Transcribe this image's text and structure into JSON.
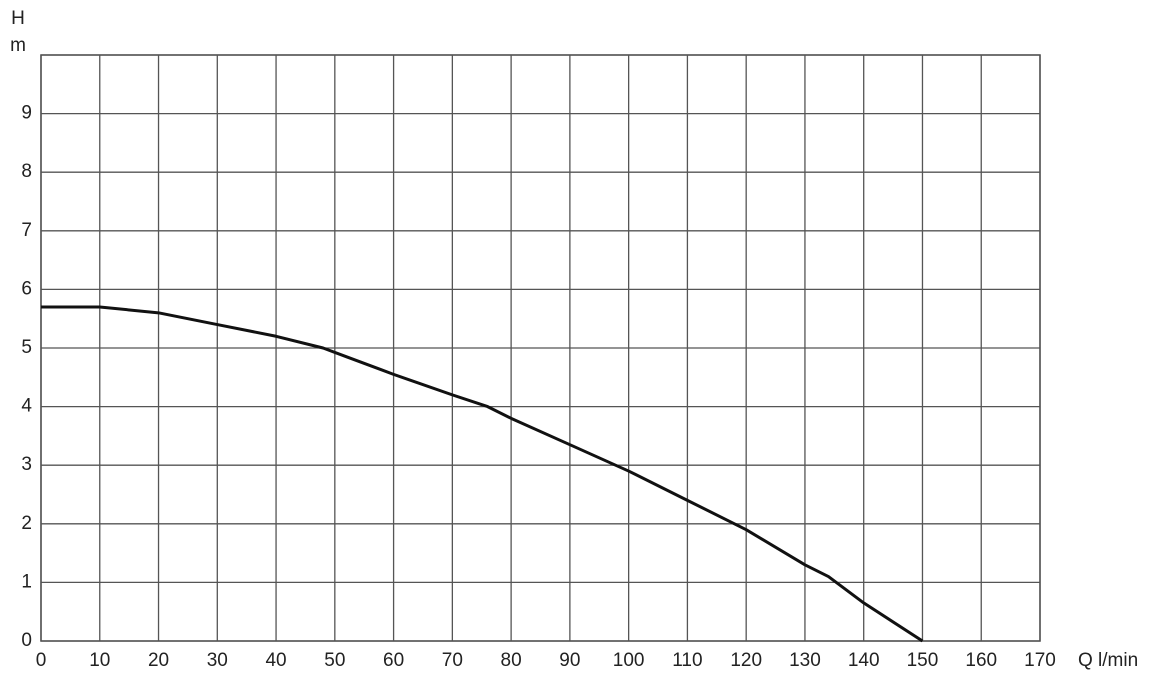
{
  "chart_data": {
    "type": "line",
    "y_label": "H",
    "y_unit": "m",
    "x_label": "Q l/min",
    "x": [
      0,
      10,
      20,
      30,
      40,
      48,
      52,
      60,
      70,
      76,
      80,
      90,
      100,
      110,
      120,
      130,
      134,
      140,
      150
    ],
    "series": [
      {
        "color": "#111111",
        "values": [
          5.7,
          5.7,
          5.6,
          5.4,
          5.2,
          5.0,
          4.85,
          4.55,
          4.2,
          4.0,
          3.8,
          3.35,
          2.9,
          2.4,
          1.9,
          1.3,
          1.1,
          0.65,
          0
        ]
      }
    ],
    "xlim": [
      0,
      170
    ],
    "xticks": [
      0,
      10,
      20,
      30,
      40,
      50,
      60,
      70,
      80,
      90,
      100,
      110,
      120,
      130,
      140,
      150,
      160,
      170
    ],
    "ylim": [
      0,
      10
    ],
    "yticks": [
      0,
      1,
      2,
      3,
      4,
      5,
      6,
      7,
      8,
      9
    ],
    "grid": true
  }
}
